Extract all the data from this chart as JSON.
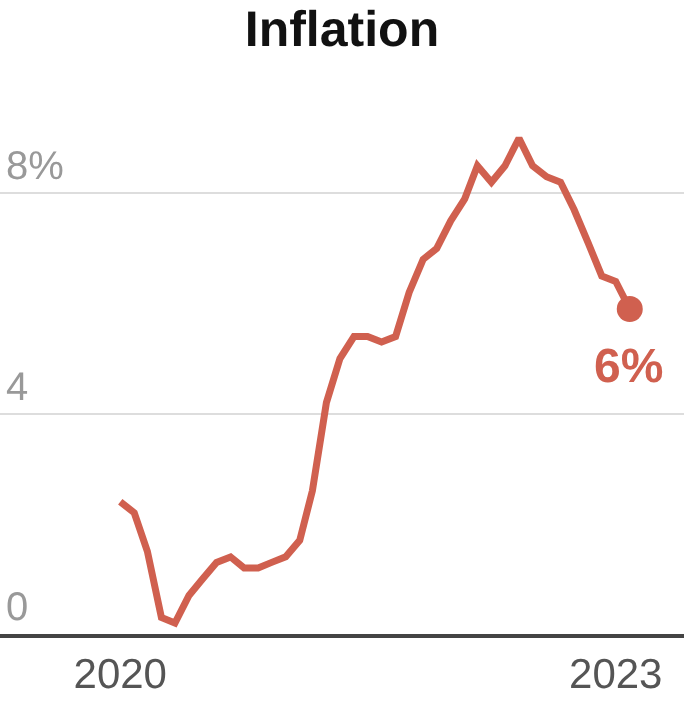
{
  "chart_data": {
    "type": "line",
    "title": "Inflation",
    "x": [
      "2020-01",
      "2020-02",
      "2020-03",
      "2020-04",
      "2020-05",
      "2020-06",
      "2020-07",
      "2020-08",
      "2020-09",
      "2020-10",
      "2020-11",
      "2020-12",
      "2021-01",
      "2021-02",
      "2021-03",
      "2021-04",
      "2021-05",
      "2021-06",
      "2021-07",
      "2021-08",
      "2021-09",
      "2021-10",
      "2021-11",
      "2021-12",
      "2022-01",
      "2022-02",
      "2022-03",
      "2022-04",
      "2022-05",
      "2022-06",
      "2022-07",
      "2022-08",
      "2022-09",
      "2022-10",
      "2022-11",
      "2022-12",
      "2023-01",
      "2023-02"
    ],
    "series": [
      {
        "color": "#d0604f",
        "values": [
          2.4,
          2.2,
          1.5,
          0.3,
          0.2,
          0.7,
          1.0,
          1.3,
          1.4,
          1.2,
          1.2,
          1.3,
          1.4,
          1.7,
          2.6,
          4.2,
          5.0,
          5.4,
          5.4,
          5.3,
          5.4,
          6.2,
          6.8,
          7.0,
          7.5,
          7.9,
          8.5,
          8.2,
          8.5,
          9.0,
          8.5,
          8.3,
          8.2,
          7.7,
          7.1,
          6.5,
          6.4,
          5.9
        ]
      },
      {
        "type": "scatter",
        "marker": "circle",
        "color": "#d0604f",
        "x": [
          "2023-02"
        ],
        "values": [
          5.9
        ]
      }
    ],
    "annotations": [
      {
        "text": "6%",
        "x": "2023-02",
        "y": 5.9
      }
    ],
    "xlim": [
      "2019-04-10",
      "2023-06"
    ],
    "xticks": [
      {
        "value": "2020-01",
        "label": "2020"
      },
      {
        "value": "2023-01",
        "label": "2023"
      }
    ],
    "ylim": [
      0,
      11.4
    ],
    "yticks": [
      0,
      4,
      {
        "value": 8,
        "label": "8%"
      }
    ],
    "grid": "y",
    "marker": "none",
    "line_style": "solid"
  }
}
